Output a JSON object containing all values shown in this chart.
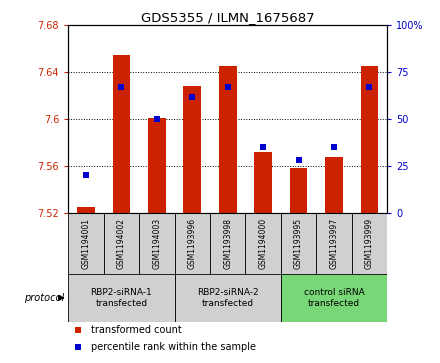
{
  "title": "GDS5355 / ILMN_1675687",
  "samples": [
    "GSM1194001",
    "GSM1194002",
    "GSM1194003",
    "GSM1193996",
    "GSM1193998",
    "GSM1194000",
    "GSM1193995",
    "GSM1193997",
    "GSM1193999"
  ],
  "red_values": [
    7.525,
    7.655,
    7.601,
    7.628,
    7.645,
    7.572,
    7.558,
    7.568,
    7.645
  ],
  "blue_values_pct": [
    20,
    67,
    50,
    62,
    67,
    35,
    28,
    35,
    67
  ],
  "ylim_left": [
    7.52,
    7.68
  ],
  "ylim_right": [
    0,
    100
  ],
  "yticks_left": [
    7.52,
    7.56,
    7.6,
    7.64,
    7.68
  ],
  "yticks_right": [
    0,
    25,
    50,
    75,
    100
  ],
  "groups": [
    {
      "label": "RBP2-siRNA-1\ntransfected",
      "start": 0,
      "end": 3
    },
    {
      "label": "RBP2-siRNA-2\ntransfected",
      "start": 3,
      "end": 6
    },
    {
      "label": "control siRNA\ntransfected",
      "start": 6,
      "end": 9
    }
  ],
  "group_colors": [
    "#d0d0d0",
    "#d0d0d0",
    "#78d878"
  ],
  "sample_box_color": "#d0d0d0",
  "bar_color": "#cc2200",
  "dot_color": "#0000cc",
  "bar_width": 0.5,
  "protocol_label": "protocol",
  "legend_red": "transformed count",
  "legend_blue": "percentile rank within the sample",
  "bg_color": "#ffffff",
  "plot_bg": "#ffffff"
}
